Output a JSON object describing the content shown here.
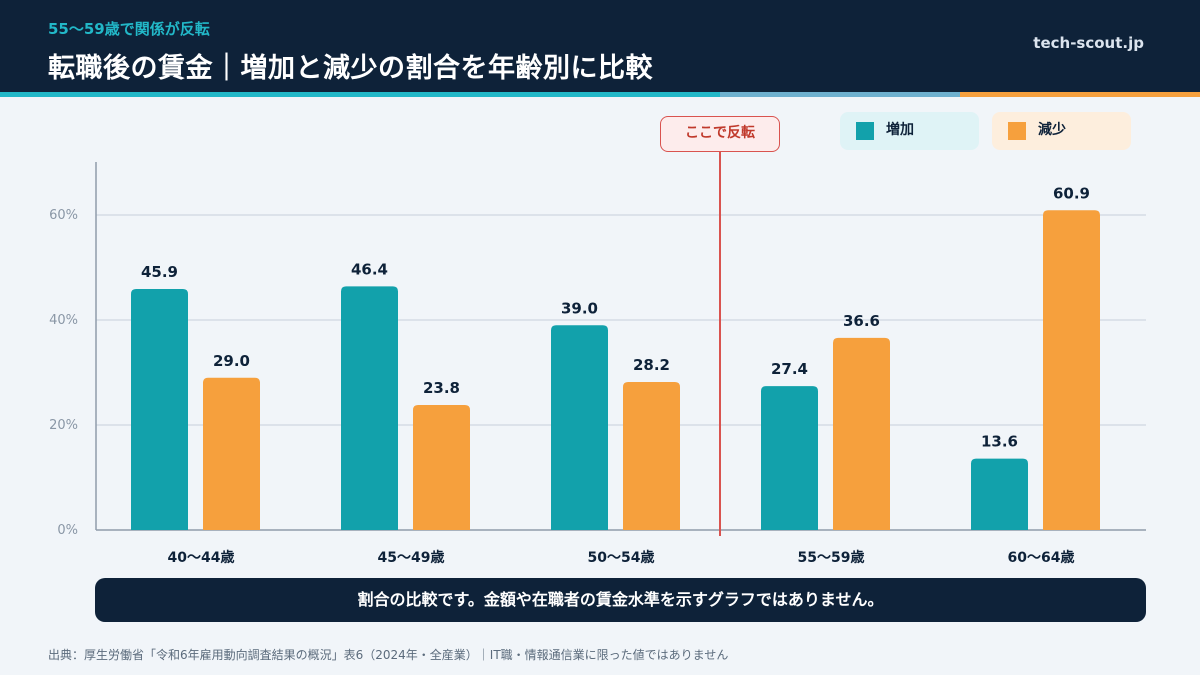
{
  "header": {
    "eyebrow": "55〜59歳で関係が反転",
    "title": "転職後の賃金｜増加と減少の割合を年齢別に比較",
    "site": "tech-scout.jp"
  },
  "annotation": {
    "reversal_label": "ここで反転"
  },
  "legend": {
    "increase": "増加",
    "decrease": "減少"
  },
  "colors": {
    "increase": "#12a1ab",
    "decrease": "#f6a03d",
    "reversal_line": "#d9534f"
  },
  "chart_data": {
    "type": "bar",
    "categories": [
      "40〜44歳",
      "45〜49歳",
      "50〜54歳",
      "55〜59歳",
      "60〜64歳"
    ],
    "series": [
      {
        "name": "増加",
        "values": [
          45.9,
          46.4,
          39.0,
          27.4,
          13.6
        ]
      },
      {
        "name": "減少",
        "values": [
          29.0,
          23.8,
          28.2,
          36.6,
          60.9
        ]
      }
    ],
    "ylim": [
      0,
      70
    ],
    "yticks": [
      0,
      20,
      40,
      60
    ],
    "ytick_labels": [
      "0%",
      "20%",
      "40%",
      "60%"
    ],
    "grid": true,
    "legend_position": "top-right",
    "reversal_between": [
      "50〜54歳",
      "55〜59歳"
    ]
  },
  "footer": {
    "note": "割合の比較です。金額や在職者の賃金水準を示すグラフではありません。",
    "source": "出典：厚生労働省「令和6年雇用動向調査結果の概況」表6（2024年・全産業）｜IT職・情報通信業に限った値ではありません"
  }
}
